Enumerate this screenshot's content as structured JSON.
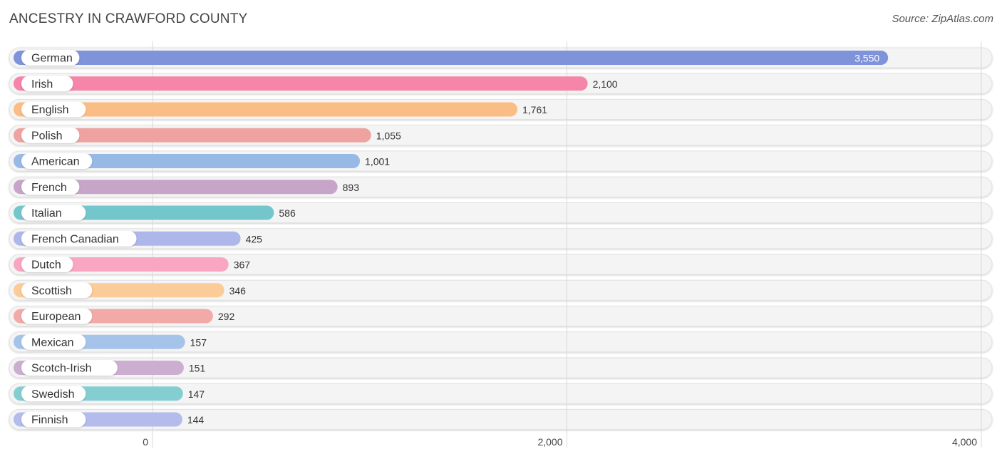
{
  "title": "ANCESTRY IN CRAWFORD COUNTY",
  "source": "Source: ZipAtlas.com",
  "chart_data": {
    "type": "bar",
    "orientation": "horizontal",
    "title": "ANCESTRY IN CRAWFORD COUNTY",
    "xlabel": "",
    "ylabel": "",
    "xlim": [
      0,
      4000
    ],
    "xticks": [
      0,
      2000,
      4000
    ],
    "xtick_labels": [
      "0",
      "2,000",
      "4,000"
    ],
    "grid": true,
    "categories": [
      "German",
      "Irish",
      "English",
      "Polish",
      "American",
      "French",
      "Italian",
      "French Canadian",
      "Dutch",
      "Scottish",
      "European",
      "Mexican",
      "Scotch-Irish",
      "Swedish",
      "Finnish"
    ],
    "values": [
      3550,
      2100,
      1761,
      1055,
      1001,
      893,
      586,
      425,
      367,
      346,
      292,
      157,
      151,
      147,
      144
    ],
    "value_labels": [
      "3,550",
      "2,100",
      "1,761",
      "1,055",
      "1,001",
      "893",
      "586",
      "425",
      "367",
      "346",
      "292",
      "157",
      "151",
      "147",
      "144"
    ],
    "colors": [
      "#7f93db",
      "#f585a9",
      "#fbbd86",
      "#eea3a1",
      "#97b9e5",
      "#c7a5c9",
      "#73c7cc",
      "#aeb7ea",
      "#f8a6c1",
      "#fbcb98",
      "#f1aaa8",
      "#a6c4ea",
      "#ccaed1",
      "#84ced1",
      "#b4bcec"
    ]
  }
}
